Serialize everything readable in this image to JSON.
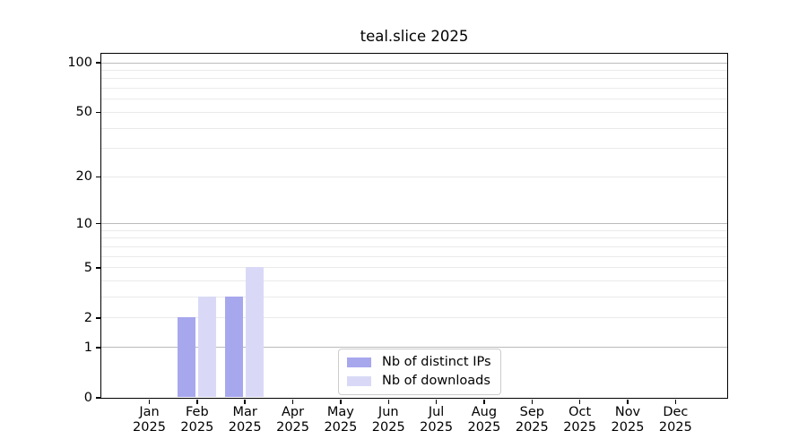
{
  "chart_data": {
    "type": "bar",
    "title": "teal.slice 2025",
    "x_axis": {
      "tick_labels": [
        {
          "month": "Jan",
          "year": "2025"
        },
        {
          "month": "Feb",
          "year": "2025"
        },
        {
          "month": "Mar",
          "year": "2025"
        },
        {
          "month": "Apr",
          "year": "2025"
        },
        {
          "month": "May",
          "year": "2025"
        },
        {
          "month": "Jun",
          "year": "2025"
        },
        {
          "month": "Jul",
          "year": "2025"
        },
        {
          "month": "Aug",
          "year": "2025"
        },
        {
          "month": "Sep",
          "year": "2025"
        },
        {
          "month": "Oct",
          "year": "2025"
        },
        {
          "month": "Nov",
          "year": "2025"
        },
        {
          "month": "Dec",
          "year": "2025"
        }
      ]
    },
    "y_axis": {
      "scale": "log1p",
      "tick_values": [
        0,
        1,
        2,
        5,
        10,
        20,
        50,
        100
      ],
      "major_gridlines": [
        1,
        10,
        100
      ],
      "minor_gridlines": [
        2,
        3,
        4,
        5,
        6,
        7,
        8,
        9,
        20,
        30,
        40,
        50,
        60,
        70,
        80,
        90
      ],
      "top_value": 100
    },
    "series": [
      {
        "name": "Nb of distinct IPs",
        "color": "#a7a7ee",
        "values": [
          0,
          2,
          3,
          0,
          0,
          0,
          0,
          0,
          0,
          0,
          0,
          0
        ]
      },
      {
        "name": "Nb of downloads",
        "color": "#d9d9f7",
        "values": [
          0,
          3,
          5,
          0,
          0,
          0,
          0,
          0,
          0,
          0,
          0,
          0
        ]
      }
    ],
    "legend": {
      "position": "bottom-center"
    },
    "colors": {
      "major_grid": "#bbbbbb",
      "minor_grid": "#eaeaea",
      "spine": "#000000",
      "text": "#000000",
      "background": "#ffffff"
    }
  }
}
